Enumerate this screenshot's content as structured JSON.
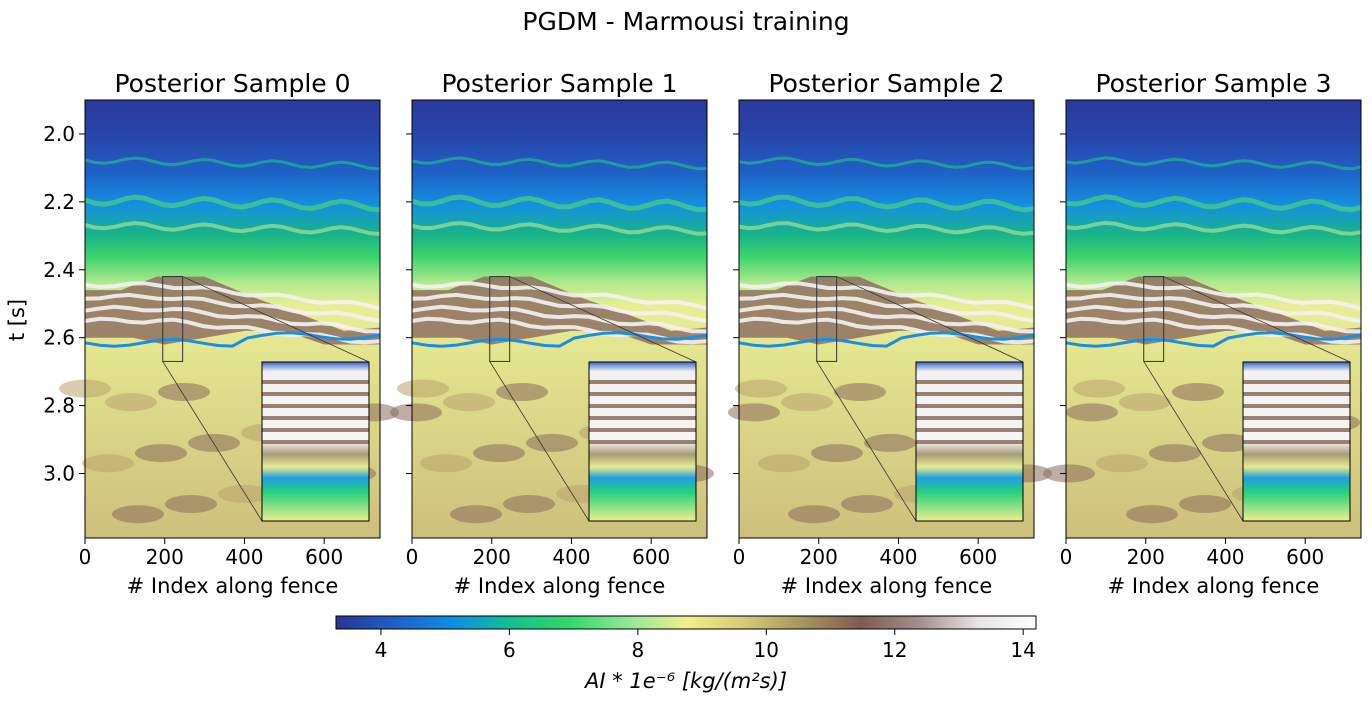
{
  "figure": {
    "suptitle": "PGDM - Marmousi training"
  },
  "chart_data": [
    {
      "type": "heatmap",
      "title": "Posterior Sample 0",
      "xlabel": "# Index along fence",
      "ylabel": "t [s]",
      "xlim": [
        0,
        740
      ],
      "ylim": [
        3.19,
        1.9
      ],
      "xticks": [
        "0",
        "200",
        "400",
        "600"
      ],
      "yticks": [
        "2.0",
        "2.2",
        "2.4",
        "2.6",
        "2.8",
        "3.0"
      ],
      "inset": {
        "x_range": [
          195,
          245
        ],
        "t_range": [
          2.42,
          2.67
        ]
      }
    },
    {
      "type": "heatmap",
      "title": "Posterior Sample 1",
      "xlabel": "# Index along fence",
      "xlim": [
        0,
        740
      ],
      "ylim": [
        3.19,
        1.9
      ],
      "xticks": [
        "0",
        "200",
        "400",
        "600"
      ],
      "inset": {
        "x_range": [
          195,
          245
        ],
        "t_range": [
          2.42,
          2.67
        ]
      }
    },
    {
      "type": "heatmap",
      "title": "Posterior Sample 2",
      "xlabel": "# Index along fence",
      "xlim": [
        0,
        740
      ],
      "ylim": [
        3.19,
        1.9
      ],
      "xticks": [
        "0",
        "200",
        "400",
        "600"
      ],
      "inset": {
        "x_range": [
          195,
          245
        ],
        "t_range": [
          2.42,
          2.67
        ]
      }
    },
    {
      "type": "heatmap",
      "title": "Posterior Sample 3",
      "xlabel": "# Index along fence",
      "xlim": [
        0,
        740
      ],
      "ylim": [
        3.19,
        1.9
      ],
      "xticks": [
        "0",
        "200",
        "400",
        "600"
      ],
      "inset": {
        "x_range": [
          195,
          245
        ],
        "t_range": [
          2.42,
          2.67
        ]
      }
    }
  ],
  "colorbar": {
    "label": "AI * 1e⁻⁶ [kg/(m²s)]",
    "range": [
      3.3,
      14.2
    ],
    "ticks": [
      "4",
      "6",
      "8",
      "10",
      "12",
      "14"
    ],
    "stops": [
      "#283593",
      "#1f5fc9",
      "#0d8ee8",
      "#14c08f",
      "#33d86a",
      "#8fe89a",
      "#f1f08a",
      "#d8c878",
      "#a8945e",
      "#7e5c52",
      "#a48e8c",
      "#e8e3e4",
      "#ffffff"
    ]
  }
}
